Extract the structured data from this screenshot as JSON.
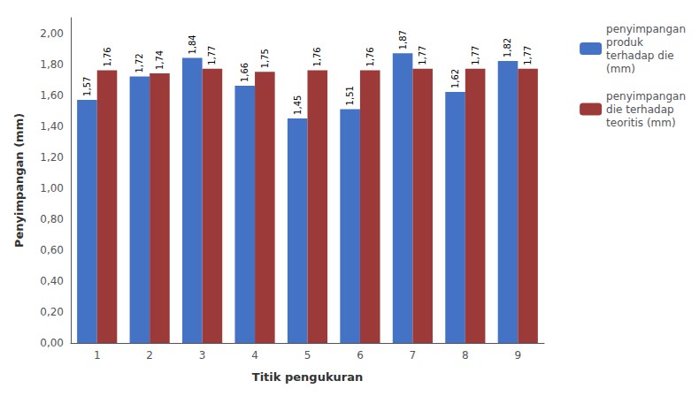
{
  "chart_data": {
    "type": "bar",
    "categories": [
      "1",
      "2",
      "3",
      "4",
      "5",
      "6",
      "7",
      "8",
      "9"
    ],
    "series": [
      {
        "name": "penyimpangan\nproduk\nterhadap die\n(mm)",
        "color": "#4472C4",
        "values": [
          1.57,
          1.72,
          1.84,
          1.66,
          1.45,
          1.51,
          1.87,
          1.62,
          1.82
        ],
        "value_labels": [
          "1,57",
          "1,72",
          "1,84",
          "1,66",
          "1,45",
          "1,51",
          "1,87",
          "1,62",
          "1,82"
        ]
      },
      {
        "name": "penyimpangan\ndie terhadap\nteoritis (mm)",
        "color": "#9B3A38",
        "values": [
          1.76,
          1.74,
          1.77,
          1.75,
          1.76,
          1.76,
          1.77,
          1.77,
          1.77
        ],
        "value_labels": [
          "1,76",
          "1,74",
          "1,77",
          "1,75",
          "1,76",
          "1,76",
          "1,77",
          "1,77",
          "1,77"
        ]
      }
    ],
    "xlabel": "Titik pengukuran",
    "ylabel": "Penyimpangan (mm)",
    "ylim": [
      0.0,
      2.1
    ],
    "yticks": [
      {
        "value": 0.0,
        "label": "0,00"
      },
      {
        "value": 0.2,
        "label": "0,20"
      },
      {
        "value": 0.4,
        "label": "0,40"
      },
      {
        "value": 0.6,
        "label": "0,60"
      },
      {
        "value": 0.8,
        "label": "0,80"
      },
      {
        "value": 1.0,
        "label": "1,00"
      },
      {
        "value": 1.2,
        "label": "1,20"
      },
      {
        "value": 1.4,
        "label": "1,40"
      },
      {
        "value": 1.6,
        "label": "1,60"
      },
      {
        "value": 1.8,
        "label": "1,80"
      },
      {
        "value": 2.0,
        "label": "2,00"
      }
    ],
    "grid": false,
    "legend": "right",
    "data_labels": true
  }
}
